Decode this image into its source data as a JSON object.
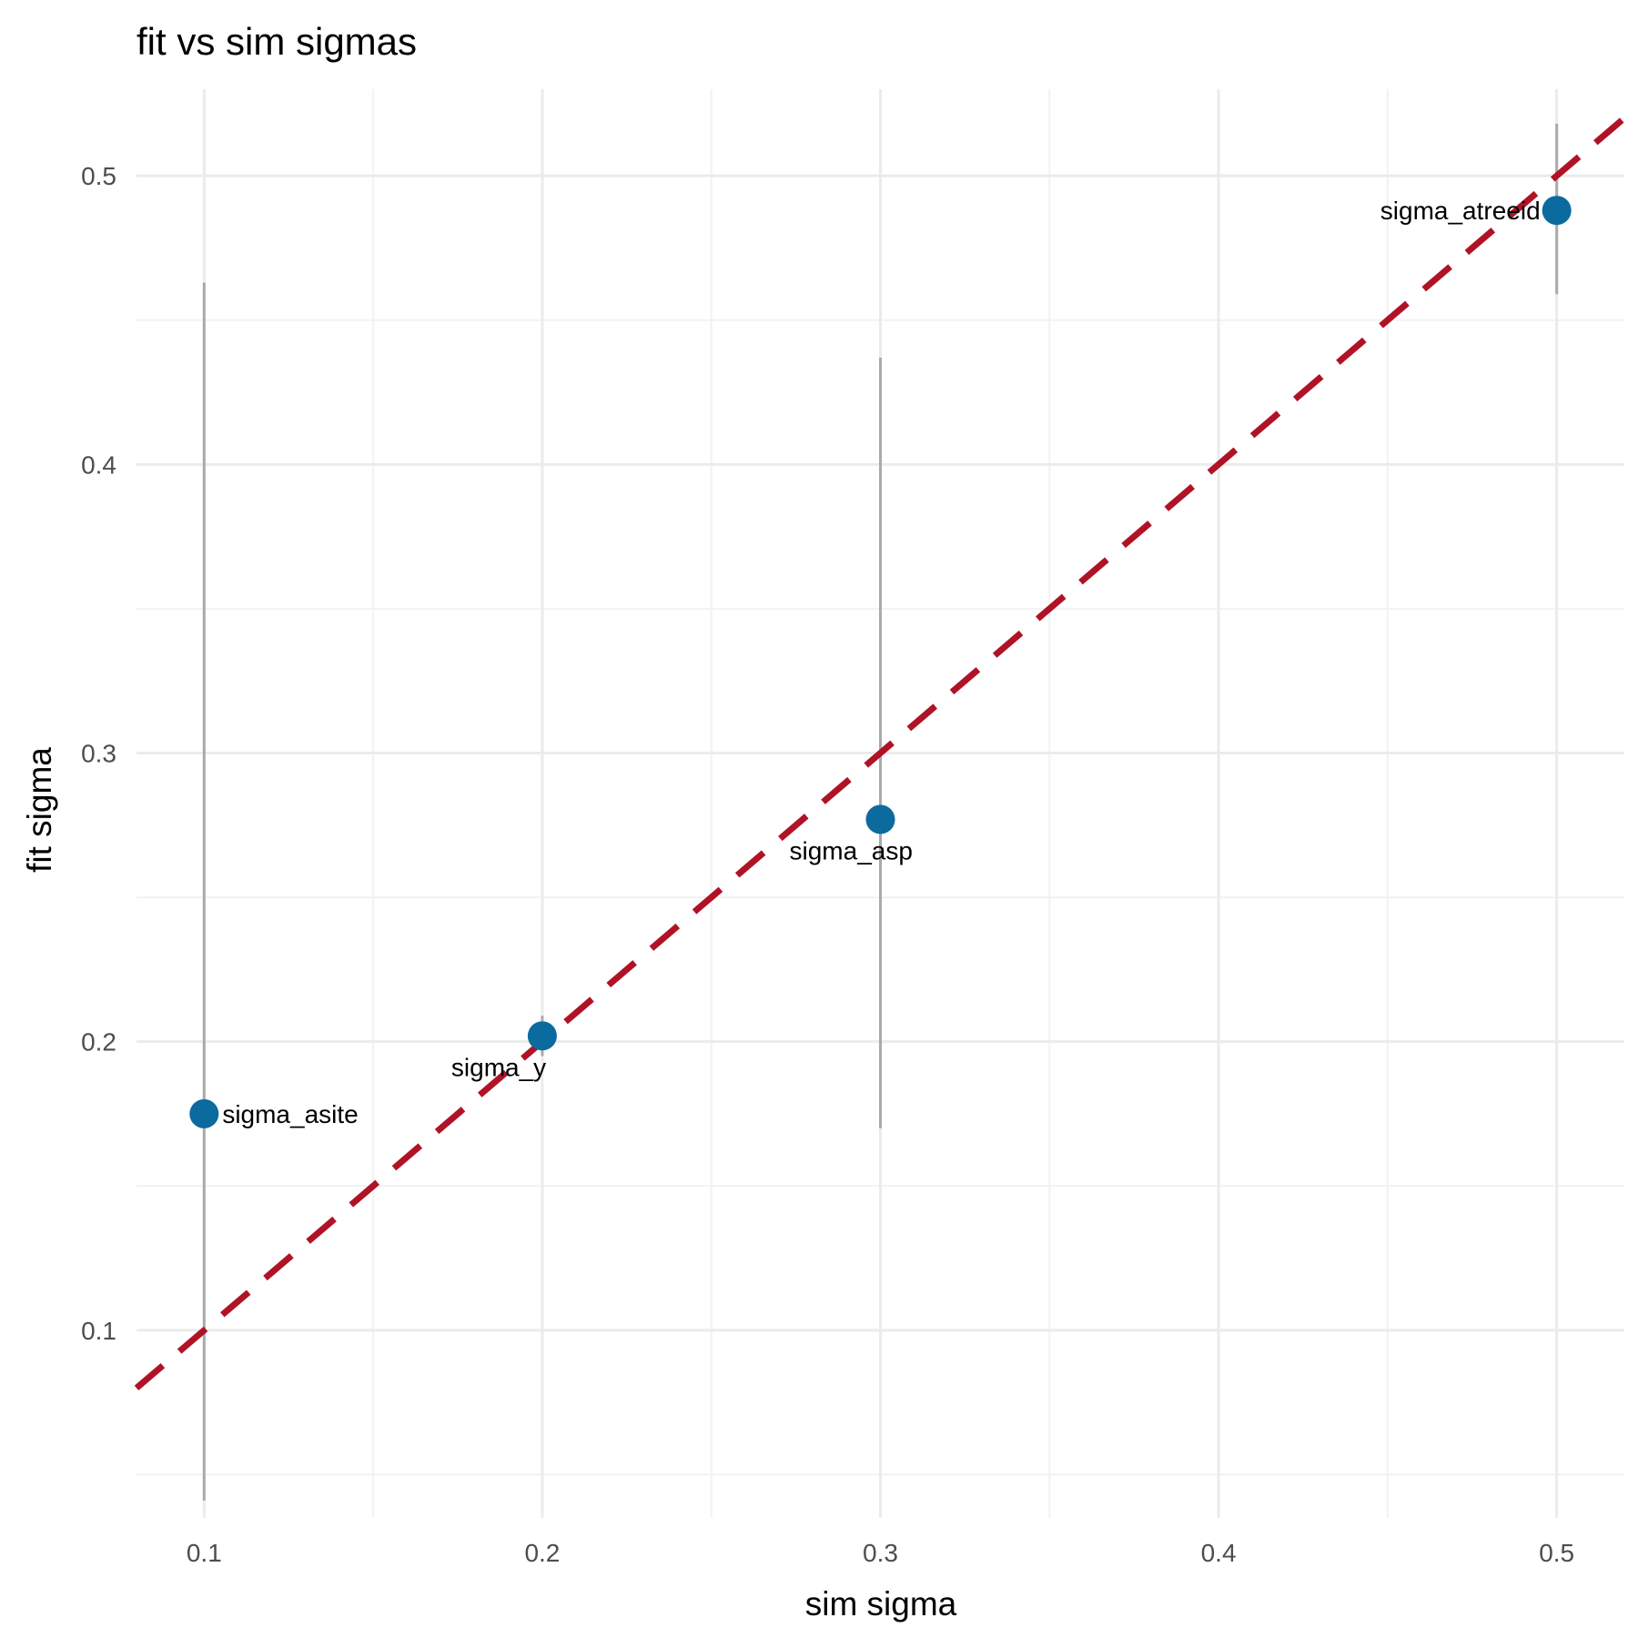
{
  "chart_data": {
    "type": "scatter",
    "title": "fit vs sim sigmas",
    "xlabel": "sim sigma",
    "ylabel": "fit sigma",
    "xlim": [
      0.08,
      0.52
    ],
    "ylim": [
      0.035,
      0.53
    ],
    "x_ticks": [
      0.1,
      0.2,
      0.3,
      0.4,
      0.5
    ],
    "x_tick_labels": [
      "0.1",
      "0.2",
      "0.3",
      "0.4",
      "0.5"
    ],
    "y_ticks": [
      0.1,
      0.2,
      0.3,
      0.4,
      0.5
    ],
    "y_tick_labels": [
      "0.1",
      "0.2",
      "0.3",
      "0.4",
      "0.5"
    ],
    "grid": true,
    "reference_line": {
      "type": "identity",
      "style": "dashed",
      "color": "#b01226"
    },
    "point_color": "#0b6a9e",
    "errorbar_color": "#aaaaaa",
    "points": [
      {
        "label": "sigma_asite",
        "x": 0.1,
        "y": 0.175,
        "low": 0.041,
        "high": 0.463,
        "label_side": "right"
      },
      {
        "label": "sigma_y",
        "x": 0.2,
        "y": 0.202,
        "low": 0.195,
        "high": 0.209,
        "label_side": "below-left"
      },
      {
        "label": "sigma_asp",
        "x": 0.3,
        "y": 0.277,
        "low": 0.17,
        "high": 0.437,
        "label_side": "below-left"
      },
      {
        "label": "sigma_atreeid",
        "x": 0.5,
        "y": 0.488,
        "low": 0.459,
        "high": 0.518,
        "label_side": "left"
      }
    ]
  }
}
